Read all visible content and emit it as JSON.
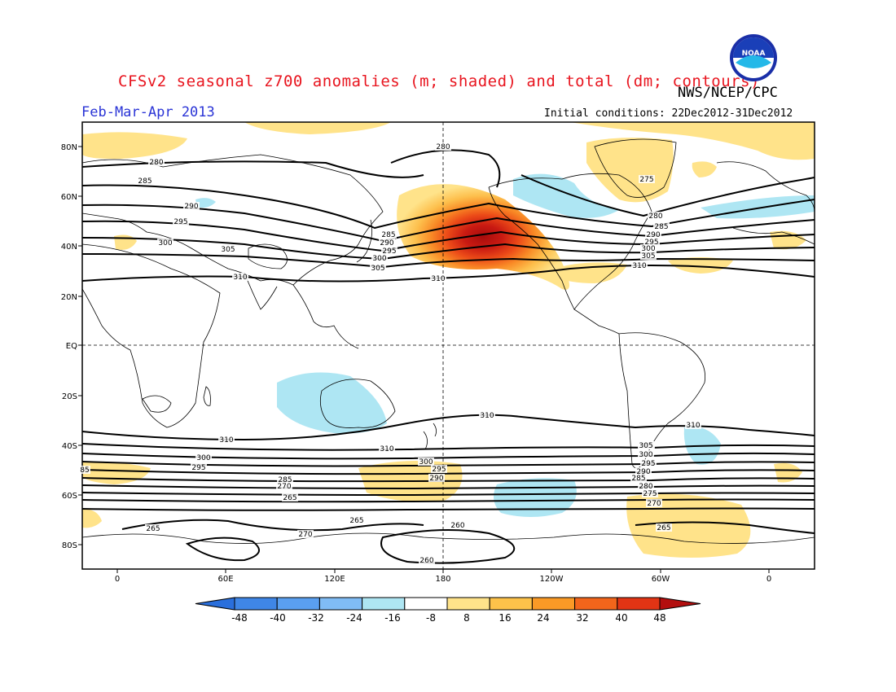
{
  "header": {
    "title": "CFSv2 seasonal z700 anomalies (m; shaded) and total (dm; contours)",
    "agency": "NWS/NCEP/CPC",
    "season": "Feb-Mar-Apr 2013",
    "initial_conditions": "Initial conditions: 22Dec2012-31Dec2012",
    "logo_text": "NOAA"
  },
  "map": {
    "lat_labels": [
      "80N",
      "60N",
      "40N",
      "20N",
      "EQ",
      "20S",
      "40S",
      "60S",
      "80S"
    ],
    "lon_labels": [
      "0",
      "60E",
      "120E",
      "180",
      "120W",
      "60W",
      "0"
    ],
    "contour_labels": [
      {
        "text": "280"
      },
      {
        "text": "285"
      },
      {
        "text": "290"
      },
      {
        "text": "295"
      },
      {
        "text": "300"
      },
      {
        "text": "305"
      },
      {
        "text": "310"
      },
      {
        "text": "310"
      },
      {
        "text": "280"
      },
      {
        "text": "285"
      },
      {
        "text": "290"
      },
      {
        "text": "295"
      },
      {
        "text": "300"
      },
      {
        "text": "305"
      },
      {
        "text": "310"
      },
      {
        "text": "275"
      },
      {
        "text": "280"
      },
      {
        "text": "285"
      },
      {
        "text": "290"
      },
      {
        "text": "295"
      },
      {
        "text": "300"
      },
      {
        "text": "305"
      },
      {
        "text": "310"
      },
      {
        "text": "310"
      },
      {
        "text": "310"
      },
      {
        "text": "310"
      },
      {
        "text": "305"
      },
      {
        "text": "300"
      },
      {
        "text": "295"
      },
      {
        "text": "285"
      },
      {
        "text": "270"
      },
      {
        "text": "265"
      },
      {
        "text": "300"
      },
      {
        "text": "295"
      },
      {
        "text": "290"
      },
      {
        "text": "305"
      },
      {
        "text": "300"
      },
      {
        "text": "295"
      },
      {
        "text": "290"
      },
      {
        "text": "285"
      },
      {
        "text": "280"
      },
      {
        "text": "275"
      },
      {
        "text": "270"
      },
      {
        "text": "265"
      },
      {
        "text": "265"
      },
      {
        "text": "265"
      },
      {
        "text": "270"
      },
      {
        "text": "260"
      },
      {
        "text": "260"
      },
      {
        "text": "85"
      }
    ]
  },
  "colorbar": {
    "labels": [
      "-48",
      "-40",
      "-32",
      "-24",
      "-16",
      "-8",
      "8",
      "16",
      "24",
      "32",
      "40",
      "48"
    ],
    "colors": [
      "#2a6fdc",
      "#3f86e6",
      "#5a9ff0",
      "#80bcf5",
      "#aee6f3",
      "#ffffff",
      "#ffe38a",
      "#fdc24a",
      "#fa9a26",
      "#f2651b",
      "#e23414",
      "#b30f0f"
    ]
  }
}
